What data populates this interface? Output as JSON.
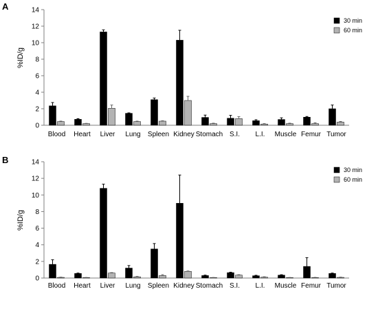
{
  "chart_data": [
    {
      "type": "bar",
      "panel": "A",
      "ylabel": "%ID/g",
      "xlabel": "",
      "ylim": [
        0,
        14
      ],
      "yticks": [
        0,
        2,
        4,
        6,
        8,
        10,
        12,
        14
      ],
      "categories": [
        "Blood",
        "Heart",
        "Liver",
        "Lung",
        "Spleen",
        "Kidney",
        "Stomach",
        "S.I.",
        "L.I.",
        "Muscle",
        "Femur",
        "Tumor"
      ],
      "legend_position": "top-right",
      "series": [
        {
          "name": "30 min",
          "color": "#000000",
          "values": [
            2.35,
            0.72,
            11.3,
            1.45,
            3.1,
            10.3,
            0.95,
            0.85,
            0.55,
            0.7,
            0.98,
            2.0
          ],
          "errors": [
            0.4,
            0.08,
            0.25,
            0.05,
            0.2,
            1.2,
            0.28,
            0.35,
            0.12,
            0.2,
            0.08,
            0.45
          ]
        },
        {
          "name": "60 min",
          "color": "#b3b3b3",
          "values": [
            0.45,
            0.2,
            2.05,
            0.45,
            0.5,
            3.0,
            0.2,
            0.8,
            0.15,
            0.2,
            0.2,
            0.38
          ],
          "errors": [
            0.05,
            0.03,
            0.4,
            0.05,
            0.05,
            0.5,
            0.05,
            0.25,
            0.05,
            0.05,
            0.1,
            0.08
          ]
        }
      ]
    },
    {
      "type": "bar",
      "panel": "B",
      "ylabel": "%ID/g",
      "xlabel": "",
      "ylim": [
        0,
        14
      ],
      "yticks": [
        0,
        2,
        4,
        6,
        8,
        10,
        12,
        14
      ],
      "categories": [
        "Blood",
        "Heart",
        "Liver",
        "Lung",
        "Spleen",
        "Kidney",
        "Stomach",
        "S.I.",
        "L.I.",
        "Muscle",
        "Femur",
        "Tumor"
      ],
      "legend_position": "top-right",
      "series": [
        {
          "name": "30 min",
          "color": "#000000",
          "values": [
            1.65,
            0.55,
            10.8,
            1.2,
            3.5,
            9.0,
            0.3,
            0.65,
            0.28,
            0.35,
            1.4,
            0.55
          ],
          "errors": [
            0.55,
            0.05,
            0.5,
            0.3,
            0.65,
            3.4,
            0.05,
            0.05,
            0.05,
            0.05,
            1.05,
            0.05
          ]
        },
        {
          "name": "60 min",
          "color": "#b3b3b3",
          "values": [
            0.08,
            0.05,
            0.6,
            0.15,
            0.3,
            0.8,
            0.05,
            0.35,
            0.1,
            0.05,
            0.05,
            0.08
          ],
          "errors": [
            0.03,
            0.02,
            0.05,
            0.05,
            0.1,
            0.05,
            0.02,
            0.05,
            0.05,
            0.02,
            0.03,
            0.03
          ]
        }
      ]
    }
  ]
}
